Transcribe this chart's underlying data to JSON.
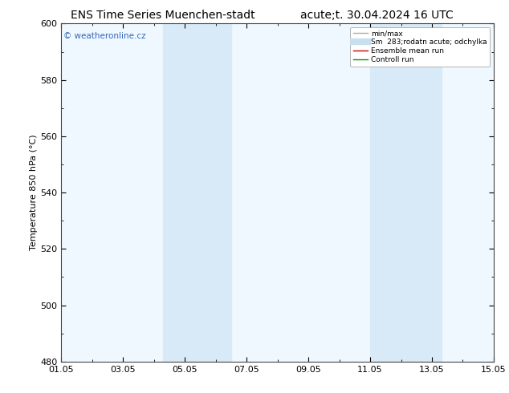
{
  "title_left": "ENS Time Series Muenchen-stadt",
  "title_right": "acute;t. 30.04.2024 16 UTC",
  "ylabel": "Temperature 850 hPa (°C)",
  "ylim": [
    480,
    600
  ],
  "yticks": [
    480,
    500,
    520,
    540,
    560,
    580,
    600
  ],
  "xlim": [
    0,
    14
  ],
  "xtick_labels": [
    "01.05",
    "03.05",
    "05.05",
    "07.05",
    "09.05",
    "11.05",
    "13.05",
    "15.05"
  ],
  "xtick_positions": [
    0,
    2,
    4,
    6,
    8,
    10,
    12,
    14
  ],
  "shaded_bands": [
    {
      "xmin": 3.3,
      "xmax": 5.5,
      "color": "#d8eaf8"
    },
    {
      "xmin": 10.0,
      "xmax": 12.3,
      "color": "#d8eaf8"
    }
  ],
  "watermark": "© weatheronline.cz",
  "watermark_color": "#3366bb",
  "legend_labels": [
    "min/max",
    "Sm  283;rodatn acute; odchylka",
    "Ensemble mean run",
    "Controll run"
  ],
  "legend_colors": [
    "#aaaaaa",
    "#c8dff0",
    "#cc0000",
    "#009900"
  ],
  "legend_lw": [
    1.0,
    6,
    1.0,
    1.0
  ],
  "bg_color": "#ffffff",
  "plot_bg_color": "#f0f8ff",
  "spine_color": "#444444",
  "title_fontsize": 10,
  "label_fontsize": 8,
  "tick_fontsize": 8
}
